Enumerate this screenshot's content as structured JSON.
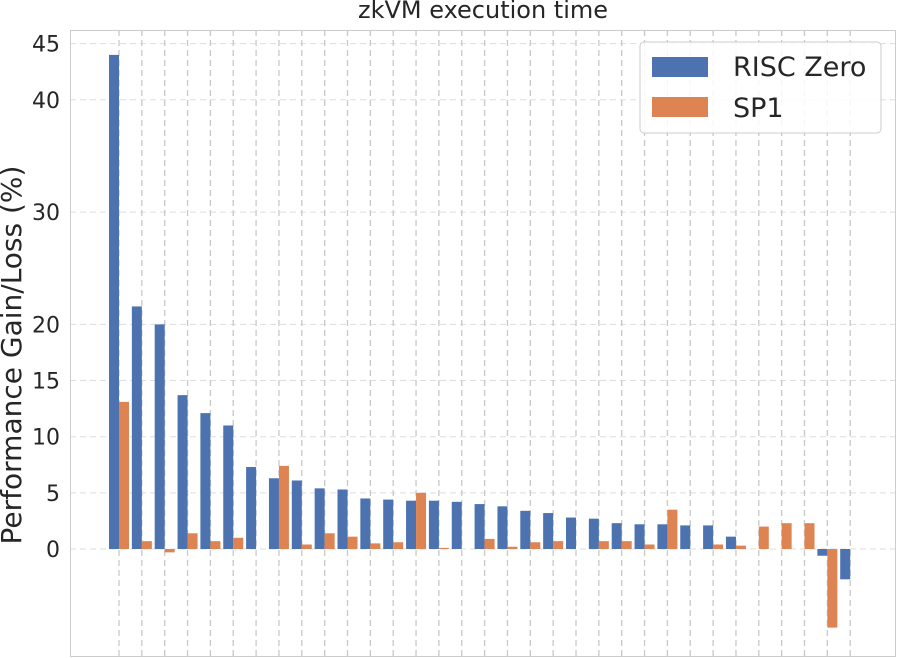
{
  "chart_data": {
    "type": "bar",
    "title": "zkVM execution time",
    "xlabel": "",
    "ylabel": "Performance Gain/Loss (%)",
    "ylim": [
      -9.5,
      46.3
    ],
    "yticks": [
      0,
      5,
      10,
      15,
      20,
      30,
      40,
      45
    ],
    "grid": true,
    "legend_position": "top-right",
    "category_count": 33,
    "series": [
      {
        "name": "RISC Zero",
        "color": "#4c72b0",
        "values": [
          44.0,
          21.6,
          20.0,
          13.7,
          12.1,
          11.0,
          7.3,
          6.3,
          6.1,
          5.4,
          5.3,
          4.5,
          4.4,
          4.3,
          4.3,
          4.2,
          4.0,
          3.8,
          3.4,
          3.2,
          2.8,
          2.7,
          2.3,
          2.2,
          2.2,
          2.1,
          2.1,
          1.1,
          0.0,
          0.0,
          0.0,
          -0.6,
          -2.7
        ]
      },
      {
        "name": "SP1",
        "color": "#dd8452",
        "values": [
          13.1,
          0.7,
          -0.3,
          1.4,
          0.7,
          1.0,
          0.0,
          7.4,
          0.4,
          1.4,
          1.1,
          0.5,
          0.6,
          5.0,
          0.1,
          0.0,
          0.9,
          0.2,
          0.6,
          0.7,
          0.0,
          0.7,
          0.7,
          0.4,
          3.5,
          0.0,
          0.4,
          0.3,
          2.0,
          2.3,
          2.3,
          -7.0,
          0.0
        ]
      }
    ]
  }
}
